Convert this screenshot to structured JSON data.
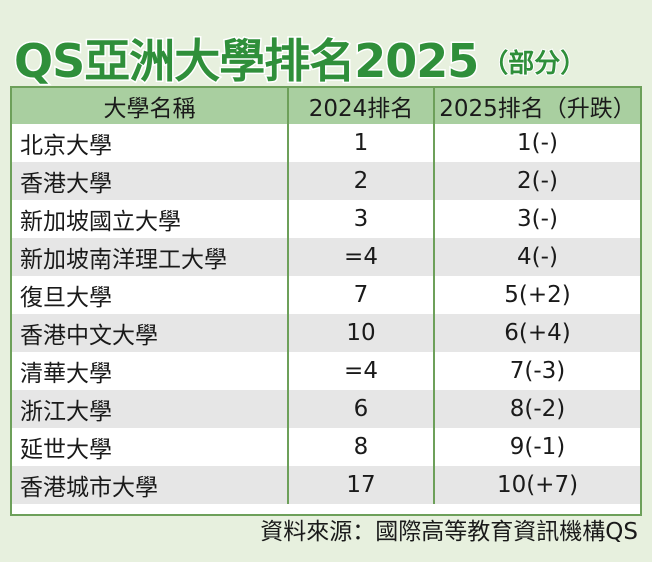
{
  "title": "QS亞洲大學排名2025",
  "subtitle": "（部分）",
  "source": "資料來源：國際高等教育資訊機構QS",
  "colors": {
    "title_green": "#2f8f3a",
    "header_bg": "#a9cfa0",
    "border": "#6da05a",
    "background": "#e7f0de",
    "row_alt": "#e6e6e6"
  },
  "chart_data": {
    "type": "table",
    "title": "QS亞洲大學排名2025（部分）",
    "columns": [
      "大學名稱",
      "2024排名",
      "2025排名（升跌）"
    ],
    "rows": [
      [
        "北京大學",
        "1",
        "1(-)"
      ],
      [
        "香港大學",
        "2",
        "2(-)"
      ],
      [
        "新加坡國立大學",
        "3",
        "3(-)"
      ],
      [
        "新加坡南洋理工大學",
        "=4",
        "4(-)"
      ],
      [
        "復旦大學",
        "7",
        "5(+2)"
      ],
      [
        "香港中文大學",
        "10",
        "6(+4)"
      ],
      [
        "清華大學",
        "=4",
        "7(-3)"
      ],
      [
        "浙江大學",
        "6",
        "8(-2)"
      ],
      [
        "延世大學",
        "8",
        "9(-1)"
      ],
      [
        "香港城市大學",
        "17",
        "10(+7)"
      ]
    ]
  }
}
